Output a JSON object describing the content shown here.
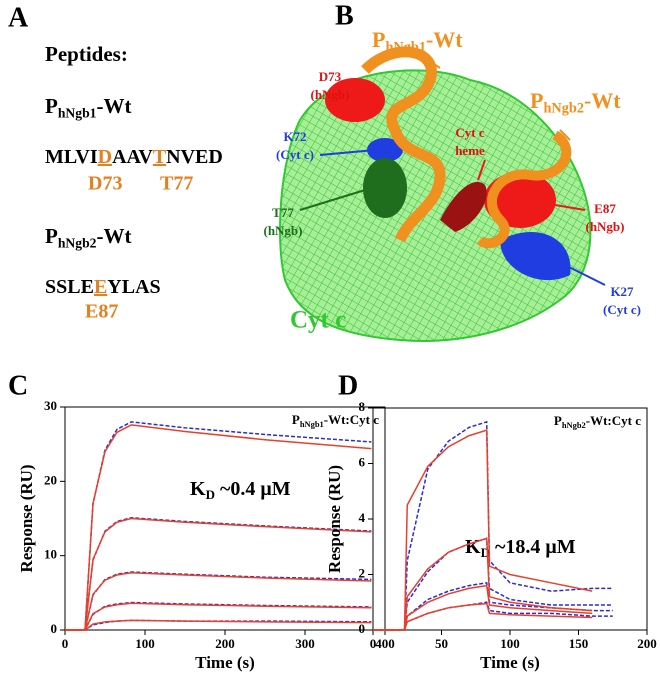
{
  "panels": {
    "letters": [
      "A",
      "B",
      "C",
      "D"
    ],
    "a": {
      "heading": "Peptides:",
      "pep1": {
        "main": "P",
        "sub": "hNgb1",
        "rest": "-Wt"
      },
      "seq1": [
        {
          "text": "MLVI"
        },
        {
          "text": "D",
          "highlight": true
        },
        {
          "text": "AAV"
        },
        {
          "text": "T",
          "highlight": true
        },
        {
          "text": "NVED"
        }
      ],
      "res1": [
        "D73",
        "T77"
      ],
      "pep2": {
        "main": "P",
        "sub": "hNgb2",
        "rest": "-Wt"
      },
      "seq2": [
        {
          "text": "SSLE"
        },
        {
          "text": "E",
          "highlight": true
        },
        {
          "text": "YLAS"
        }
      ],
      "res2": [
        "E87"
      ]
    },
    "b": {
      "pep1": {
        "main": "P",
        "sub": "hNgb1",
        "rest": "-Wt"
      },
      "pep2": {
        "main": "P",
        "sub": "hNgb2",
        "rest": "-Wt"
      },
      "d73": [
        "D73",
        "(hNgb)"
      ],
      "heme": [
        "Cyt c",
        "heme"
      ],
      "k72": [
        "K72",
        "(Cyt c)"
      ],
      "e87": [
        "E87",
        "(hNgb)"
      ],
      "t77": [
        "T77",
        "(hNgb)"
      ],
      "k27": [
        "K27",
        "(Cyt c)"
      ],
      "cytc": "Cyt c"
    }
  },
  "chart_data": [
    {
      "type": "line",
      "xlabel": "Time (s)",
      "ylabel": "Response (RU)",
      "annotation": {
        "main": "P",
        "sub": "hNgb1",
        "rest": "-Wt:Cyt c"
      },
      "kd": {
        "main": "K",
        "sub": "D",
        "rest": " ~0.4 μM"
      },
      "xlim": [
        0,
        400
      ],
      "xticks": [
        0,
        100,
        200,
        300,
        400
      ],
      "ylim": [
        0,
        30
      ],
      "yticks": [
        0,
        10,
        20,
        30
      ],
      "x": [
        0,
        25,
        35,
        50,
        65,
        83,
        150,
        250,
        383
      ],
      "series": [
        {
          "color": "#2b2bd6",
          "dashed": true,
          "values": [
            0,
            0,
            17,
            24.2,
            27,
            28,
            27.2,
            26.3,
            25.3
          ]
        },
        {
          "color": "#2b2bd6",
          "dashed": true,
          "values": [
            0,
            0,
            9.4,
            13.3,
            14.6,
            15.1,
            14.6,
            14,
            13.3
          ]
        },
        {
          "color": "#2b2bd6",
          "dashed": true,
          "values": [
            0,
            0,
            4.7,
            6.8,
            7.5,
            7.8,
            7.5,
            7.1,
            6.8
          ]
        },
        {
          "color": "#2b2bd6",
          "dashed": true,
          "values": [
            0,
            0,
            2.1,
            3.2,
            3.5,
            3.7,
            3.5,
            3.3,
            3.1
          ]
        },
        {
          "color": "#2b2bd6",
          "dashed": true,
          "values": [
            0,
            0,
            0.7,
            1.0,
            1.2,
            1.3,
            1.2,
            1.2,
            1.1
          ]
        },
        {
          "color": "#e8402a",
          "dashed": false,
          "values": [
            0,
            0,
            17,
            24,
            26.6,
            27.6,
            26.7,
            25.6,
            24.4
          ]
        },
        {
          "color": "#e8402a",
          "dashed": false,
          "values": [
            0,
            0,
            9.5,
            13.2,
            14.5,
            15,
            14.5,
            13.9,
            13.2
          ]
        },
        {
          "color": "#e8402a",
          "dashed": false,
          "values": [
            0,
            0,
            4.8,
            6.7,
            7.4,
            7.7,
            7.4,
            7.0,
            6.6
          ]
        },
        {
          "color": "#e8402a",
          "dashed": false,
          "values": [
            0,
            0,
            2.2,
            3.1,
            3.4,
            3.6,
            3.4,
            3.2,
            3.0
          ]
        },
        {
          "color": "#e8402a",
          "dashed": false,
          "values": [
            0,
            0,
            0.8,
            1.1,
            1.2,
            1.3,
            1.2,
            1.1,
            1.0
          ]
        }
      ]
    },
    {
      "type": "line",
      "xlabel": "Time (s)",
      "ylabel": "Response (RU)",
      "annotation": {
        "main": "P",
        "sub": "hNgb2",
        "rest": "-Wt:Cyt c"
      },
      "kd": {
        "main": "K",
        "sub": "D",
        "rest": " ~18.4 μM"
      },
      "xlim": [
        0,
        200
      ],
      "xticks": [
        0,
        50,
        100,
        150,
        200
      ],
      "ylim": [
        0,
        8
      ],
      "yticks": [
        0,
        2,
        4,
        6,
        8
      ],
      "x": [
        0,
        23,
        25,
        40,
        55,
        70,
        83,
        85,
        100,
        130,
        160,
        175
      ],
      "series": [
        {
          "color": "#2b2bd6",
          "dashed": true,
          "values": [
            0,
            0,
            2.5,
            5.8,
            6.8,
            7.3,
            7.5,
            2.5,
            1.7,
            1.4,
            1.5,
            1.5
          ]
        },
        {
          "color": "#2b2bd6",
          "dashed": true,
          "values": [
            0,
            0,
            1,
            2.1,
            2.8,
            3.1,
            3.3,
            1.5,
            1.1,
            0.9,
            0.9,
            0.9
          ]
        },
        {
          "color": "#2b2bd6",
          "dashed": true,
          "values": [
            0,
            0,
            0.5,
            1.1,
            1.4,
            1.6,
            1.7,
            1.0,
            0.9,
            0.8,
            0.7,
            0.7
          ]
        },
        {
          "color": "#2b2bd6",
          "dashed": true,
          "values": [
            0,
            0,
            0.3,
            0.6,
            0.8,
            0.9,
            1.0,
            0.7,
            0.6,
            0.6,
            0.5,
            0.5
          ]
        },
        {
          "color": "#e8402a",
          "dashed": false,
          "values": [
            0,
            0,
            4.5,
            5.9,
            6.6,
            7.0,
            7.2,
            2.3,
            2.0,
            1.7,
            1.4,
            null
          ]
        },
        {
          "color": "#e8402a",
          "dashed": false,
          "values": [
            0,
            0,
            1.2,
            2.2,
            2.8,
            3.1,
            3.3,
            1.2,
            1.0,
            0.8,
            0.7,
            null
          ]
        },
        {
          "color": "#e8402a",
          "dashed": false,
          "values": [
            0,
            0,
            0.5,
            1.0,
            1.3,
            1.5,
            1.6,
            0.9,
            0.8,
            0.7,
            0.6,
            null
          ]
        },
        {
          "color": "#e8402a",
          "dashed": false,
          "values": [
            0,
            0,
            0.3,
            0.6,
            0.8,
            0.9,
            0.95,
            0.6,
            0.55,
            0.5,
            0.45,
            null
          ]
        }
      ]
    }
  ]
}
